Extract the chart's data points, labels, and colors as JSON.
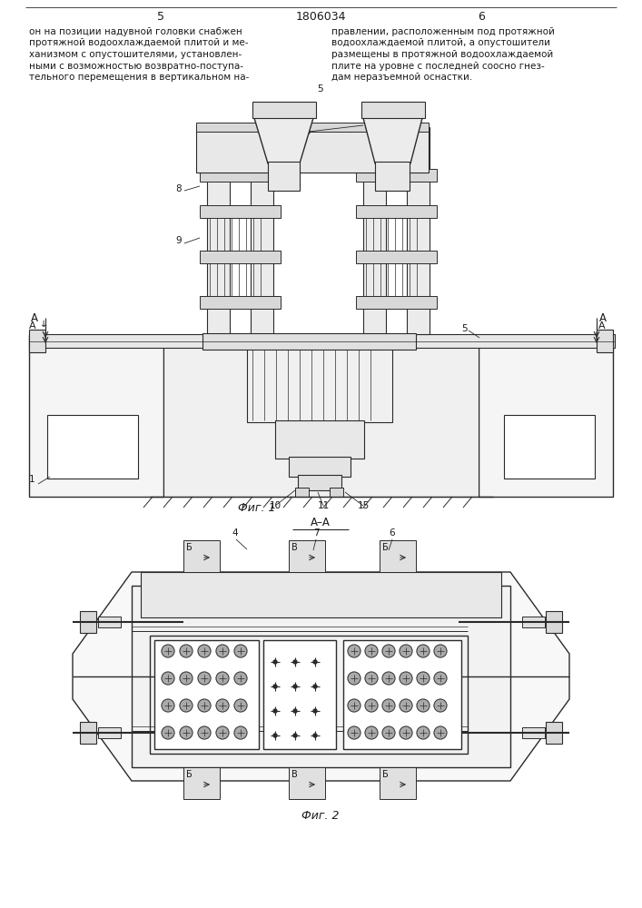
{
  "bg_color": "#ffffff",
  "line_color": "#2a2a2a",
  "text_color": "#1a1a1a",
  "page_left": "5",
  "page_center": "1806034",
  "page_right": "6",
  "fig1_caption": "Фиг. 1",
  "fig2_caption": "Фиг. 2",
  "section_label": "А–А"
}
